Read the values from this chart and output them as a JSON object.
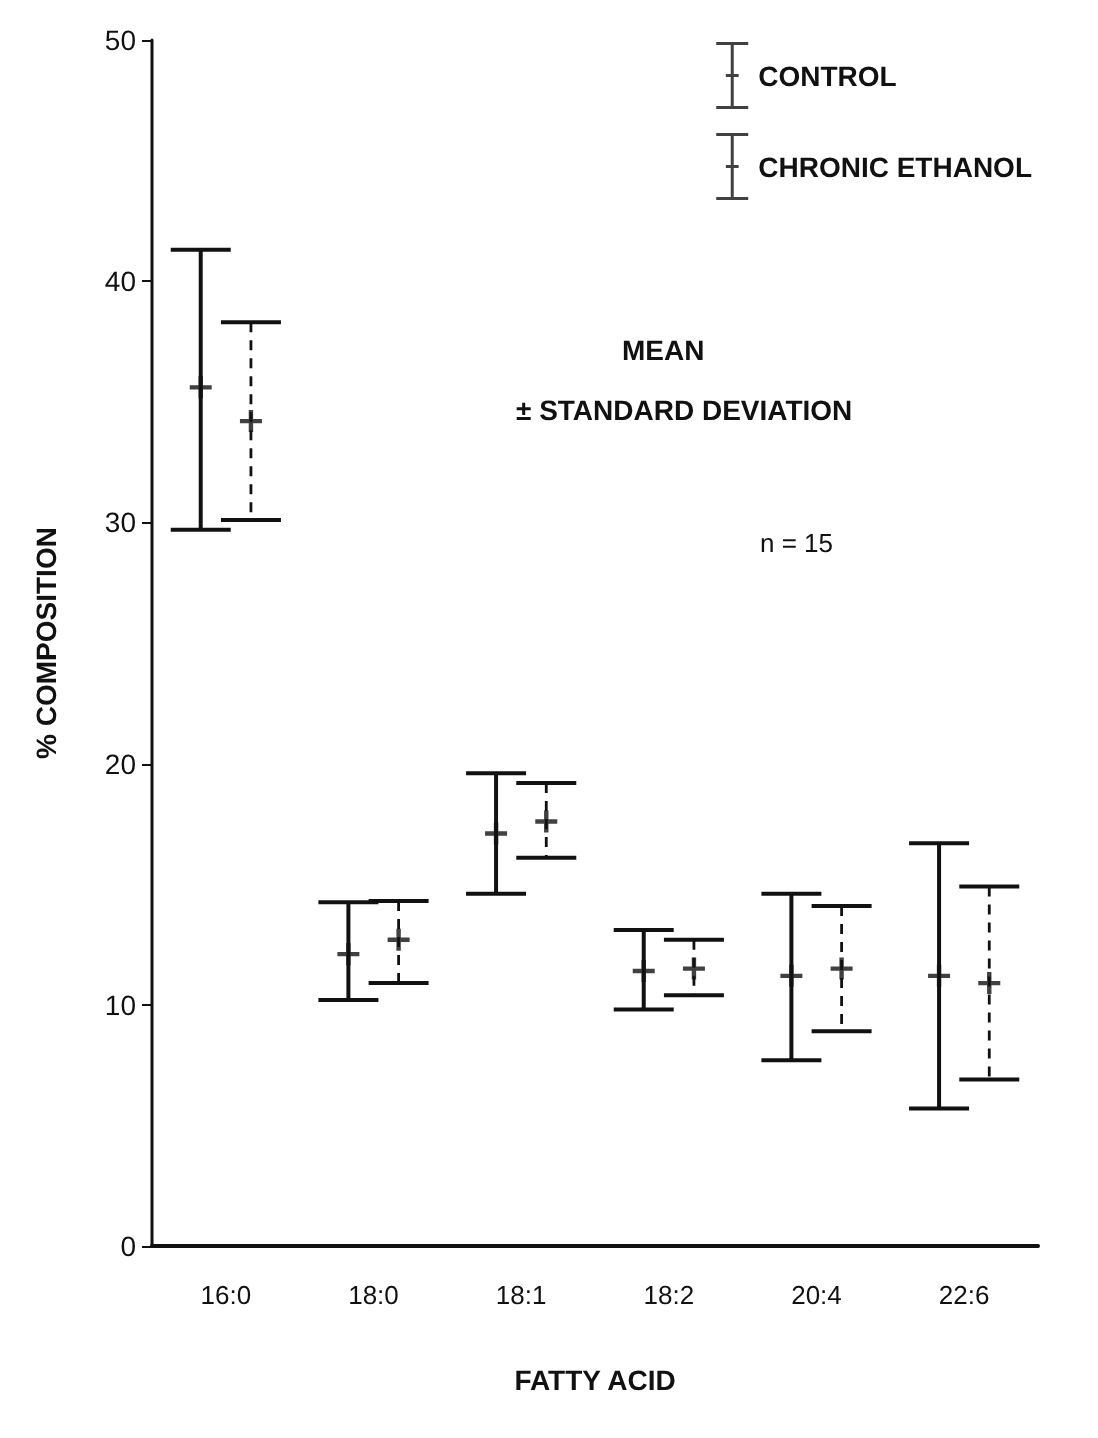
{
  "chart_data": {
    "type": "scatter",
    "xlabel": "FATTY ACID",
    "ylabel": "% COMPOSITION",
    "categories": [
      "16:0",
      "18:0",
      "18:1",
      "18:2",
      "20:4",
      "22:6"
    ],
    "series": [
      {
        "name": "CONTROL",
        "color": "#111111",
        "line_style": "solid",
        "values": [
          35.6,
          12.1,
          17.1,
          11.4,
          11.2,
          11.2
        ],
        "errors": [
          [
            29.7,
            41.3
          ],
          [
            10.2,
            14.25
          ],
          [
            14.6,
            19.6
          ],
          [
            9.8,
            13.1
          ],
          [
            7.7,
            14.6
          ],
          [
            5.7,
            16.7
          ]
        ]
      },
      {
        "name": "CHRONIC ETHANOL",
        "color": "#111111",
        "line_style": "dashed",
        "values": [
          34.2,
          12.7,
          17.6,
          11.5,
          11.5,
          10.9
        ],
        "errors": [
          [
            30.1,
            38.3
          ],
          [
            10.9,
            14.3
          ],
          [
            16.1,
            19.2
          ],
          [
            10.4,
            12.7
          ],
          [
            8.9,
            14.1
          ],
          [
            6.9,
            14.9
          ]
        ]
      }
    ],
    "ylim": [
      0,
      50
    ],
    "yticks": [
      0,
      10,
      20,
      30,
      40,
      50
    ],
    "grid": false,
    "legend": "top right",
    "marker": "cross",
    "annotations": [
      "MEAN",
      "± STANDARD DEVIATION",
      "n = 15"
    ]
  }
}
